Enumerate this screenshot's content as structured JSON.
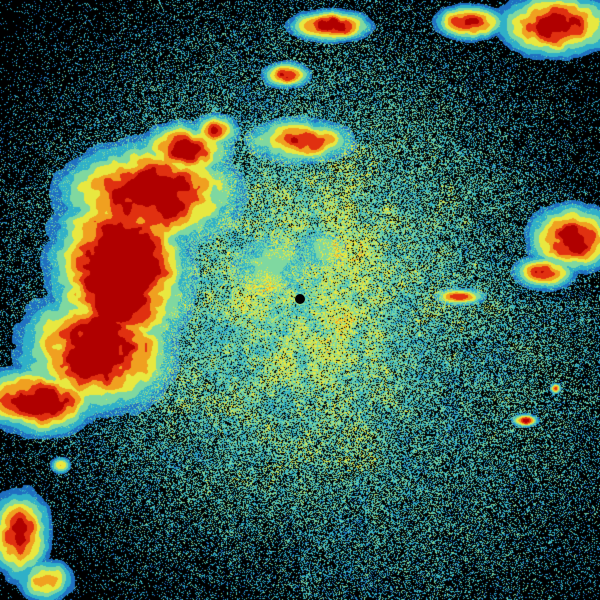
{
  "image": {
    "kind": "weather radar reflectivity scan",
    "background_color": "#000000",
    "colormap": [
      "#0a2a8a",
      "#1f6fc0",
      "#2fb0c8",
      "#7fd8a0",
      "#e8e840",
      "#f0a020",
      "#e03010",
      "#b00000"
    ],
    "radar_site_marker_color": "#000000"
  }
}
